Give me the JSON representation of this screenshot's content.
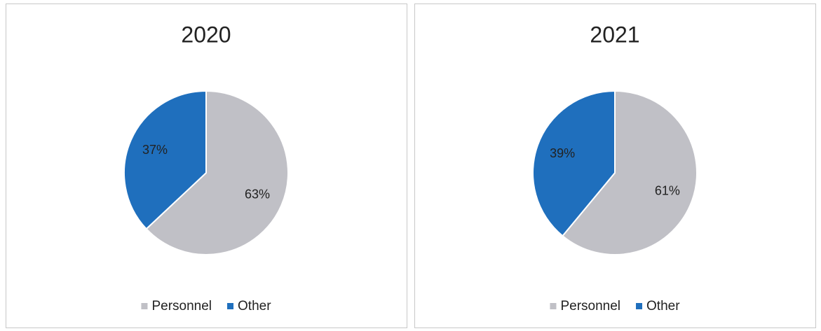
{
  "chart_data": [
    {
      "type": "pie",
      "title": "2020",
      "categories": [
        "Personnel",
        "Other"
      ],
      "values": [
        63,
        37
      ],
      "value_labels": [
        "63%",
        "37%"
      ],
      "colors": [
        "#c0c0c6",
        "#1f6fbd"
      ]
    },
    {
      "type": "pie",
      "title": "2021",
      "categories": [
        "Personnel",
        "Other"
      ],
      "values": [
        61,
        39
      ],
      "value_labels": [
        "61%",
        "39%"
      ],
      "colors": [
        "#c0c0c6",
        "#1f6fbd"
      ]
    }
  ]
}
